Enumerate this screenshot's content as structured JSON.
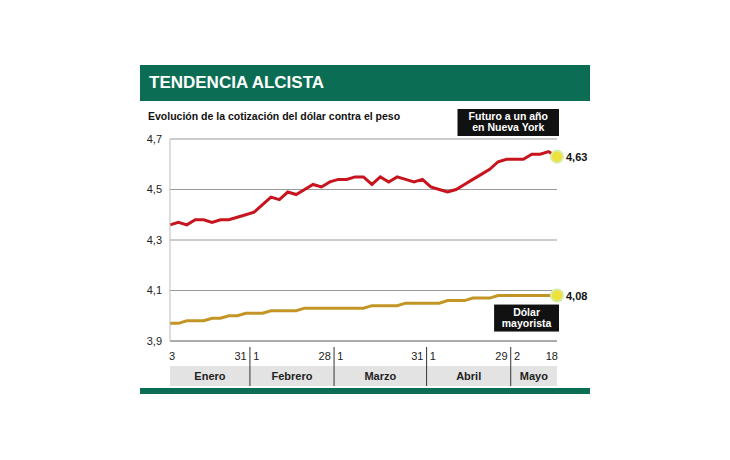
{
  "chart_data": {
    "type": "line",
    "title": "TENDENCIA ALCISTA",
    "subtitle": "Evolución de la cotización del dólar contra el peso",
    "categories": [
      "3",
      null,
      null,
      null,
      null,
      null,
      null,
      null,
      null,
      "31",
      "1",
      null,
      null,
      null,
      null,
      null,
      null,
      null,
      null,
      "28",
      "1",
      null,
      null,
      null,
      null,
      null,
      null,
      null,
      null,
      null,
      "31",
      "1",
      null,
      null,
      null,
      null,
      null,
      null,
      null,
      null,
      "29",
      "2",
      null,
      null,
      null,
      null,
      "18"
    ],
    "months": [
      "Enero",
      "Febrero",
      "Marzo",
      "Abril",
      "Mayo"
    ],
    "series": [
      {
        "name": "Futuro a un año en Nueva York",
        "color": "#c8141e",
        "values": [
          4.36,
          4.37,
          4.36,
          4.38,
          4.38,
          4.37,
          4.38,
          4.38,
          4.39,
          4.4,
          4.41,
          4.44,
          4.47,
          4.46,
          4.49,
          4.48,
          4.5,
          4.52,
          4.51,
          4.53,
          4.54,
          4.54,
          4.55,
          4.55,
          4.52,
          4.55,
          4.53,
          4.55,
          4.54,
          4.53,
          4.54,
          4.51,
          4.5,
          4.49,
          4.5,
          4.52,
          4.54,
          4.56,
          4.58,
          4.61,
          4.62,
          4.62,
          4.62,
          4.64,
          4.64,
          4.65,
          4.63
        ],
        "value_labels": [
          null,
          null,
          null,
          null,
          null,
          null,
          null,
          null,
          null,
          null,
          null,
          null,
          null,
          null,
          null,
          null,
          null,
          null,
          null,
          null,
          null,
          null,
          null,
          null,
          null,
          null,
          null,
          null,
          null,
          null,
          null,
          null,
          null,
          null,
          null,
          null,
          null,
          null,
          null,
          null,
          null,
          null,
          null,
          null,
          null,
          null,
          "4,63"
        ]
      },
      {
        "name": "Dólar mayorista",
        "color": "#c39524",
        "values": [
          3.97,
          3.97,
          3.98,
          3.98,
          3.98,
          3.99,
          3.99,
          4.0,
          4.0,
          4.01,
          4.01,
          4.01,
          4.02,
          4.02,
          4.02,
          4.02,
          4.03,
          4.03,
          4.03,
          4.03,
          4.03,
          4.03,
          4.03,
          4.03,
          4.04,
          4.04,
          4.04,
          4.04,
          4.05,
          4.05,
          4.05,
          4.05,
          4.05,
          4.06,
          4.06,
          4.06,
          4.07,
          4.07,
          4.07,
          4.08,
          4.08,
          4.08,
          4.08,
          4.08,
          4.08,
          4.08,
          4.08
        ],
        "value_labels": [
          null,
          null,
          null,
          null,
          null,
          null,
          null,
          null,
          null,
          null,
          null,
          null,
          null,
          null,
          null,
          null,
          null,
          null,
          null,
          null,
          null,
          null,
          null,
          null,
          null,
          null,
          null,
          null,
          null,
          null,
          null,
          null,
          null,
          null,
          null,
          null,
          null,
          null,
          null,
          null,
          null,
          null,
          null,
          null,
          null,
          null,
          "4,08"
        ]
      }
    ],
    "ylim": [
      3.9,
      4.7
    ],
    "yticks": [
      {
        "value": 3.9,
        "label": "3,9"
      },
      {
        "value": 4.1,
        "label": "4,1"
      },
      {
        "value": 4.3,
        "label": "4,3"
      },
      {
        "value": 4.5,
        "label": "4,5"
      },
      {
        "value": 4.7,
        "label": "4,7"
      }
    ],
    "grid": true
  }
}
